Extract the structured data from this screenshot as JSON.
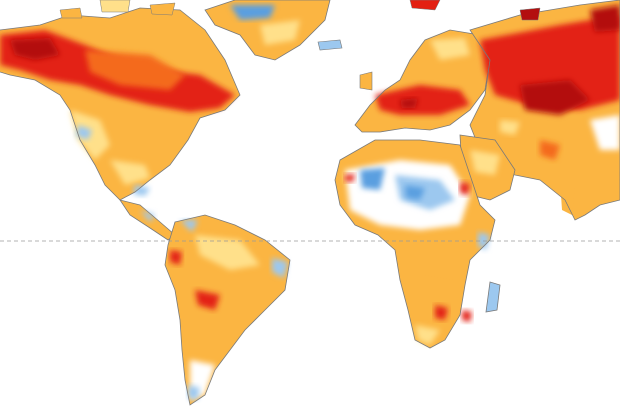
{
  "map": {
    "kind": "temperature-anomaly-world-map",
    "colors": {
      "ocean": "#ffffff",
      "light_warm": "#ffe08a",
      "warm": "#fbb542",
      "hot": "#f46a1e",
      "very_hot": "#e32012",
      "extreme": "#b30f0f",
      "cool": "#9cc8ef",
      "cold": "#5a9fe0",
      "coastline": "#7a7a7a",
      "equator_line": "#9a9a9a"
    },
    "regions": [
      {
        "name": "north-america",
        "anomaly": "warm-to-very-warm"
      },
      {
        "name": "greenland",
        "anomaly": "warm-with-cool-patch"
      },
      {
        "name": "south-america",
        "anomaly": "warm"
      },
      {
        "name": "europe",
        "anomaly": "warm-to-hot"
      },
      {
        "name": "africa",
        "anomaly": "warm-with-cool-sahel"
      },
      {
        "name": "asia",
        "anomaly": "hot-to-extreme"
      }
    ]
  }
}
